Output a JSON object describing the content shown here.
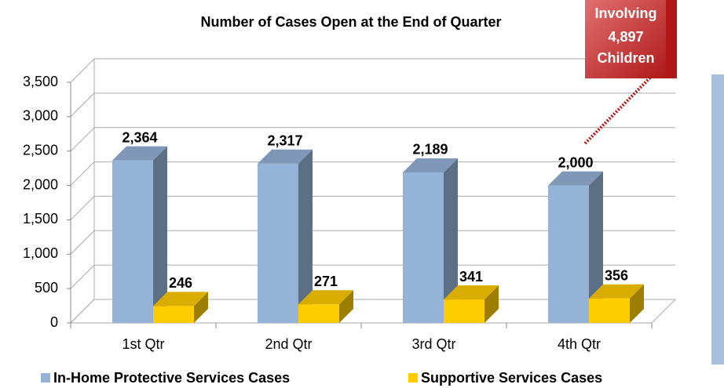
{
  "chart_data": {
    "type": "bar3d",
    "title": "Number of Cases Open at the End of Quarter",
    "annotation": [
      "Involving",
      "4,897",
      "Children"
    ],
    "categories": [
      "1st Qtr",
      "2nd Qtr",
      "3rd Qtr",
      "4th Qtr"
    ],
    "series": [
      {
        "name": "In-Home Protective Services Cases",
        "color": "#95b3d7",
        "values": [
          2364,
          2317,
          2189,
          2000
        ],
        "value_labels": [
          "2,364",
          "2,317",
          "2,189",
          "2,000"
        ]
      },
      {
        "name": "Supportive Services Cases",
        "color": "#ffcc00",
        "values": [
          246,
          271,
          341,
          356
        ],
        "value_labels": [
          "246",
          "271",
          "341",
          "356"
        ]
      }
    ],
    "ylim": [
      0,
      3500
    ],
    "yticks": [
      0,
      500,
      {
        "value": 1000,
        "label": "1,000"
      },
      {
        "value": 1500,
        "label": "1,500"
      },
      {
        "value": 2000,
        "label": "2,000"
      },
      {
        "value": 2500,
        "label": "2,500"
      },
      {
        "value": 3000,
        "label": "3,000"
      },
      {
        "value": 3500,
        "label": "3,500"
      }
    ],
    "grid": true
  }
}
